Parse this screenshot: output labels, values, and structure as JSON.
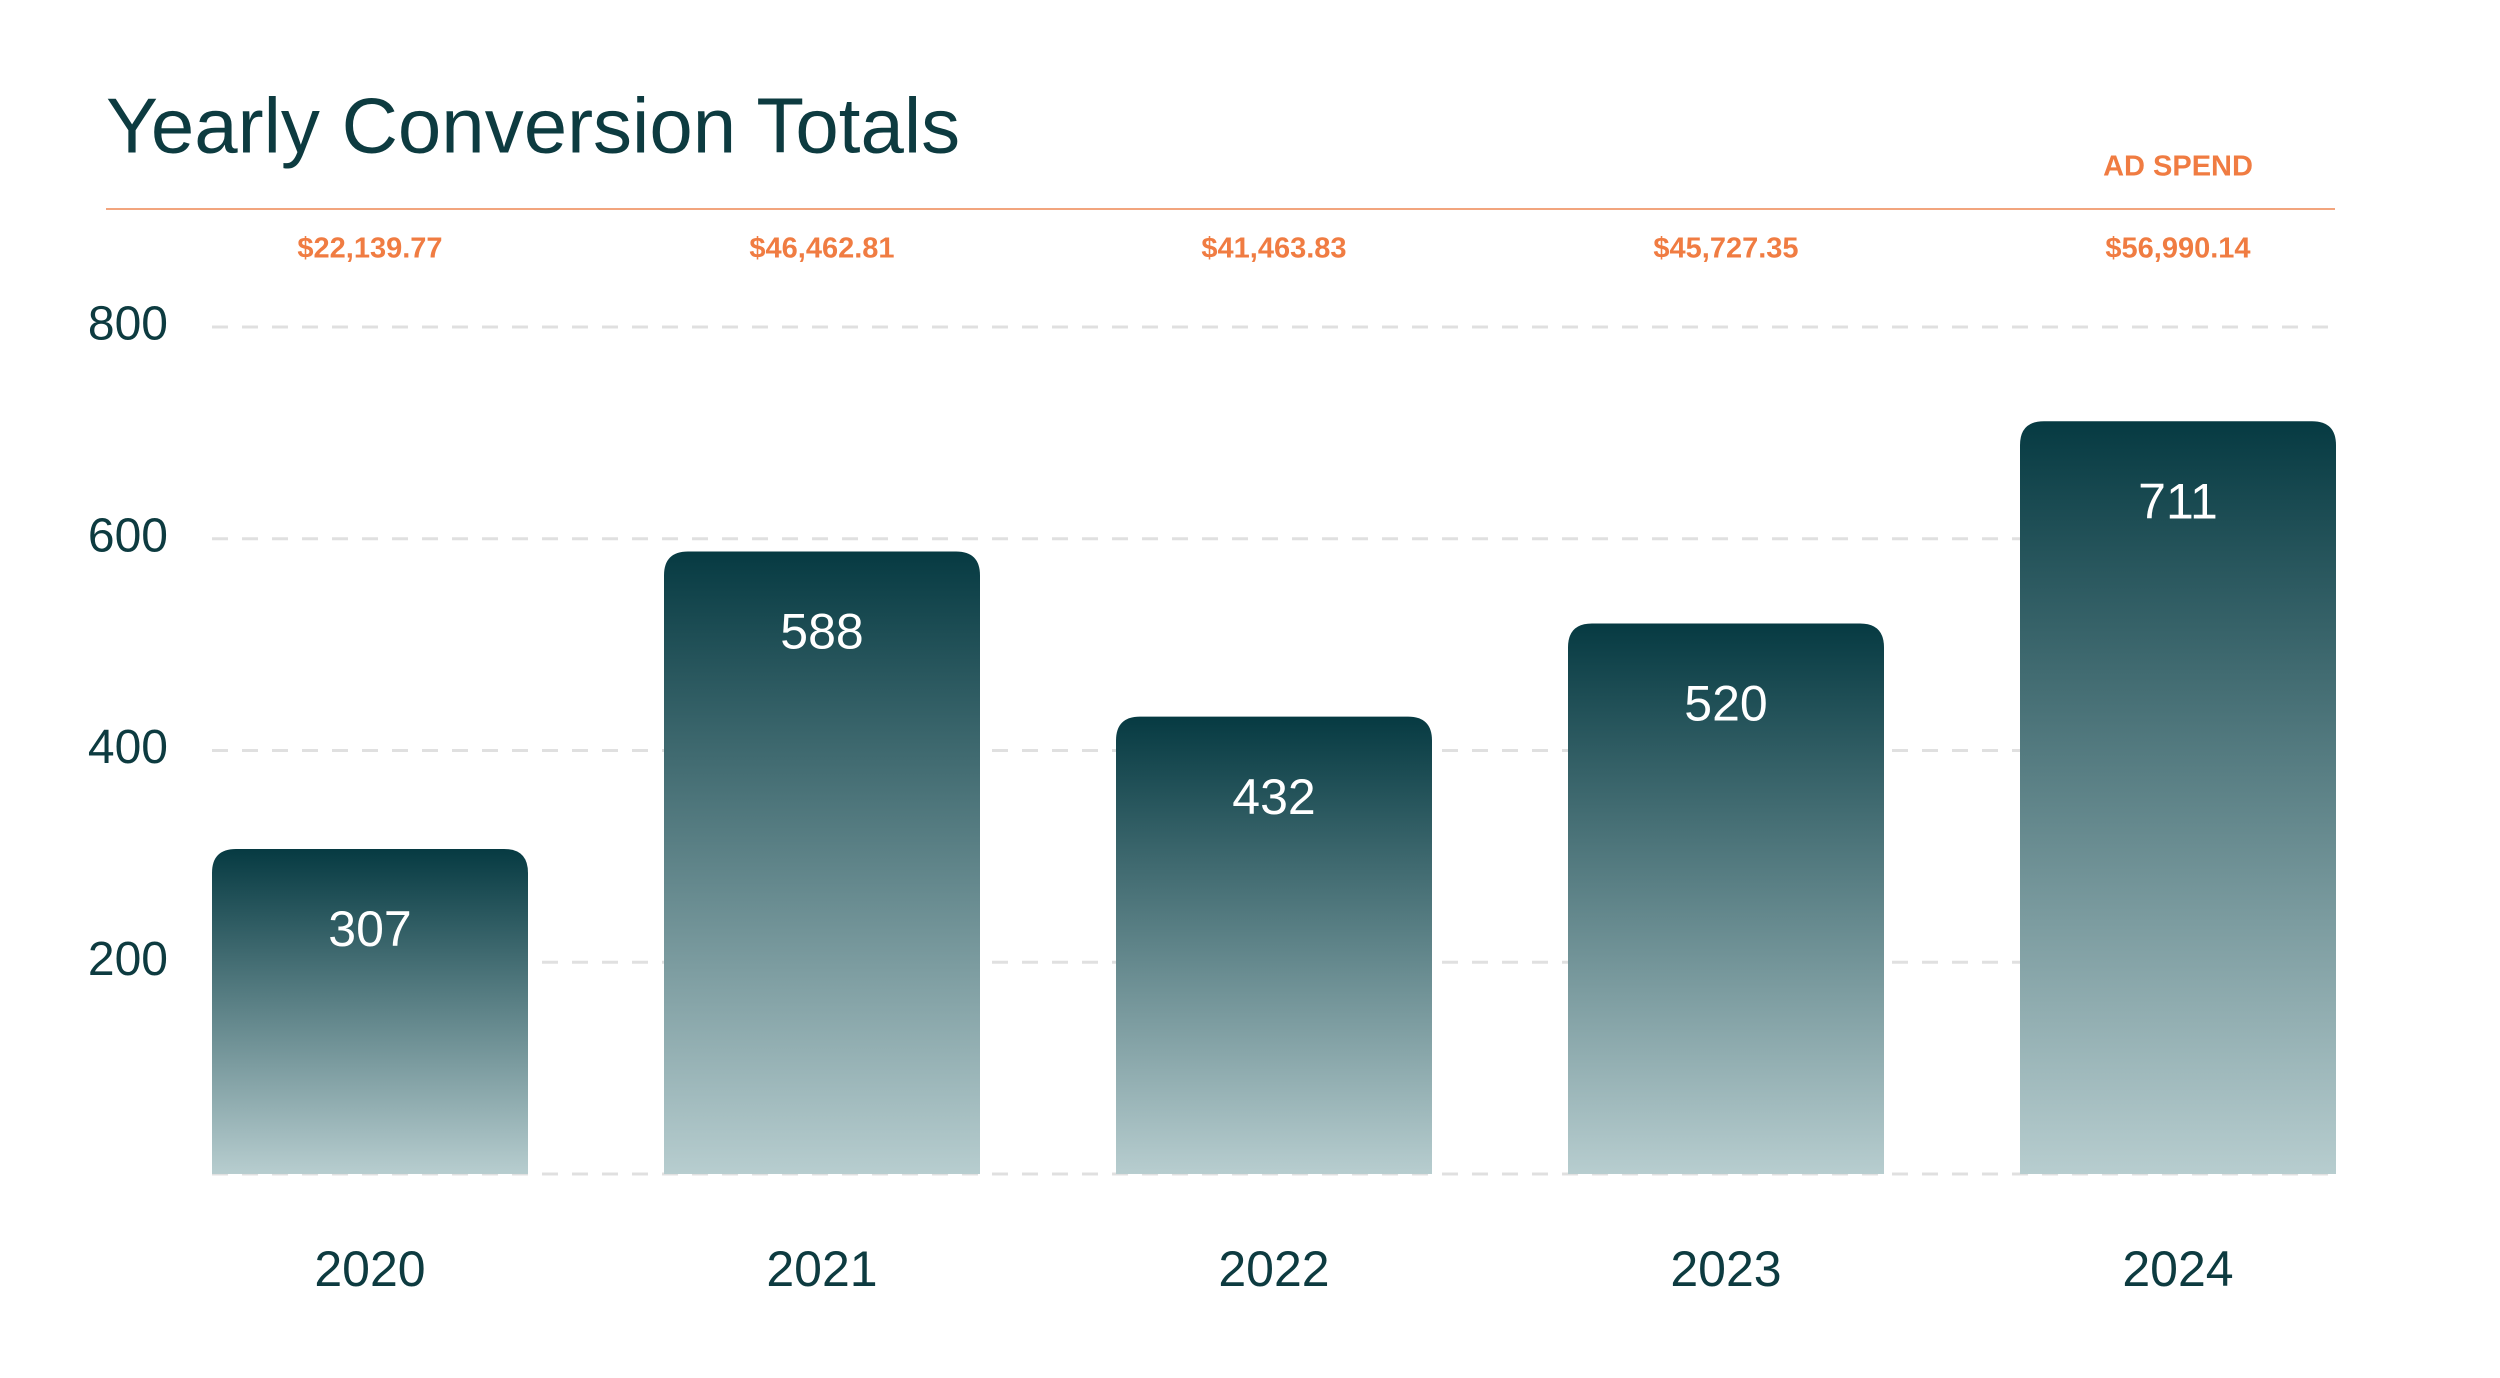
{
  "chart_data": {
    "type": "bar",
    "title": "Yearly Conversion Totals",
    "categories": [
      "2020",
      "2021",
      "2022",
      "2023",
      "2024"
    ],
    "values": [
      307,
      588,
      432,
      520,
      711
    ],
    "color_top": "#063a42",
    "color_bottom": "#b7cdcf",
    "ylim": [
      0,
      800
    ],
    "yticks": [
      200,
      400,
      600,
      800
    ],
    "grid": true,
    "ad_spend": {
      "label": "AD SPEND",
      "color": "#f07c42",
      "values": [
        22139.77,
        46462.81,
        41463.83,
        45727.35,
        56990.14
      ],
      "value_labels": [
        "$22,139.77",
        "$46,462.81",
        "$41,463.83",
        "$45,727.35",
        "$56,990.14"
      ]
    }
  }
}
